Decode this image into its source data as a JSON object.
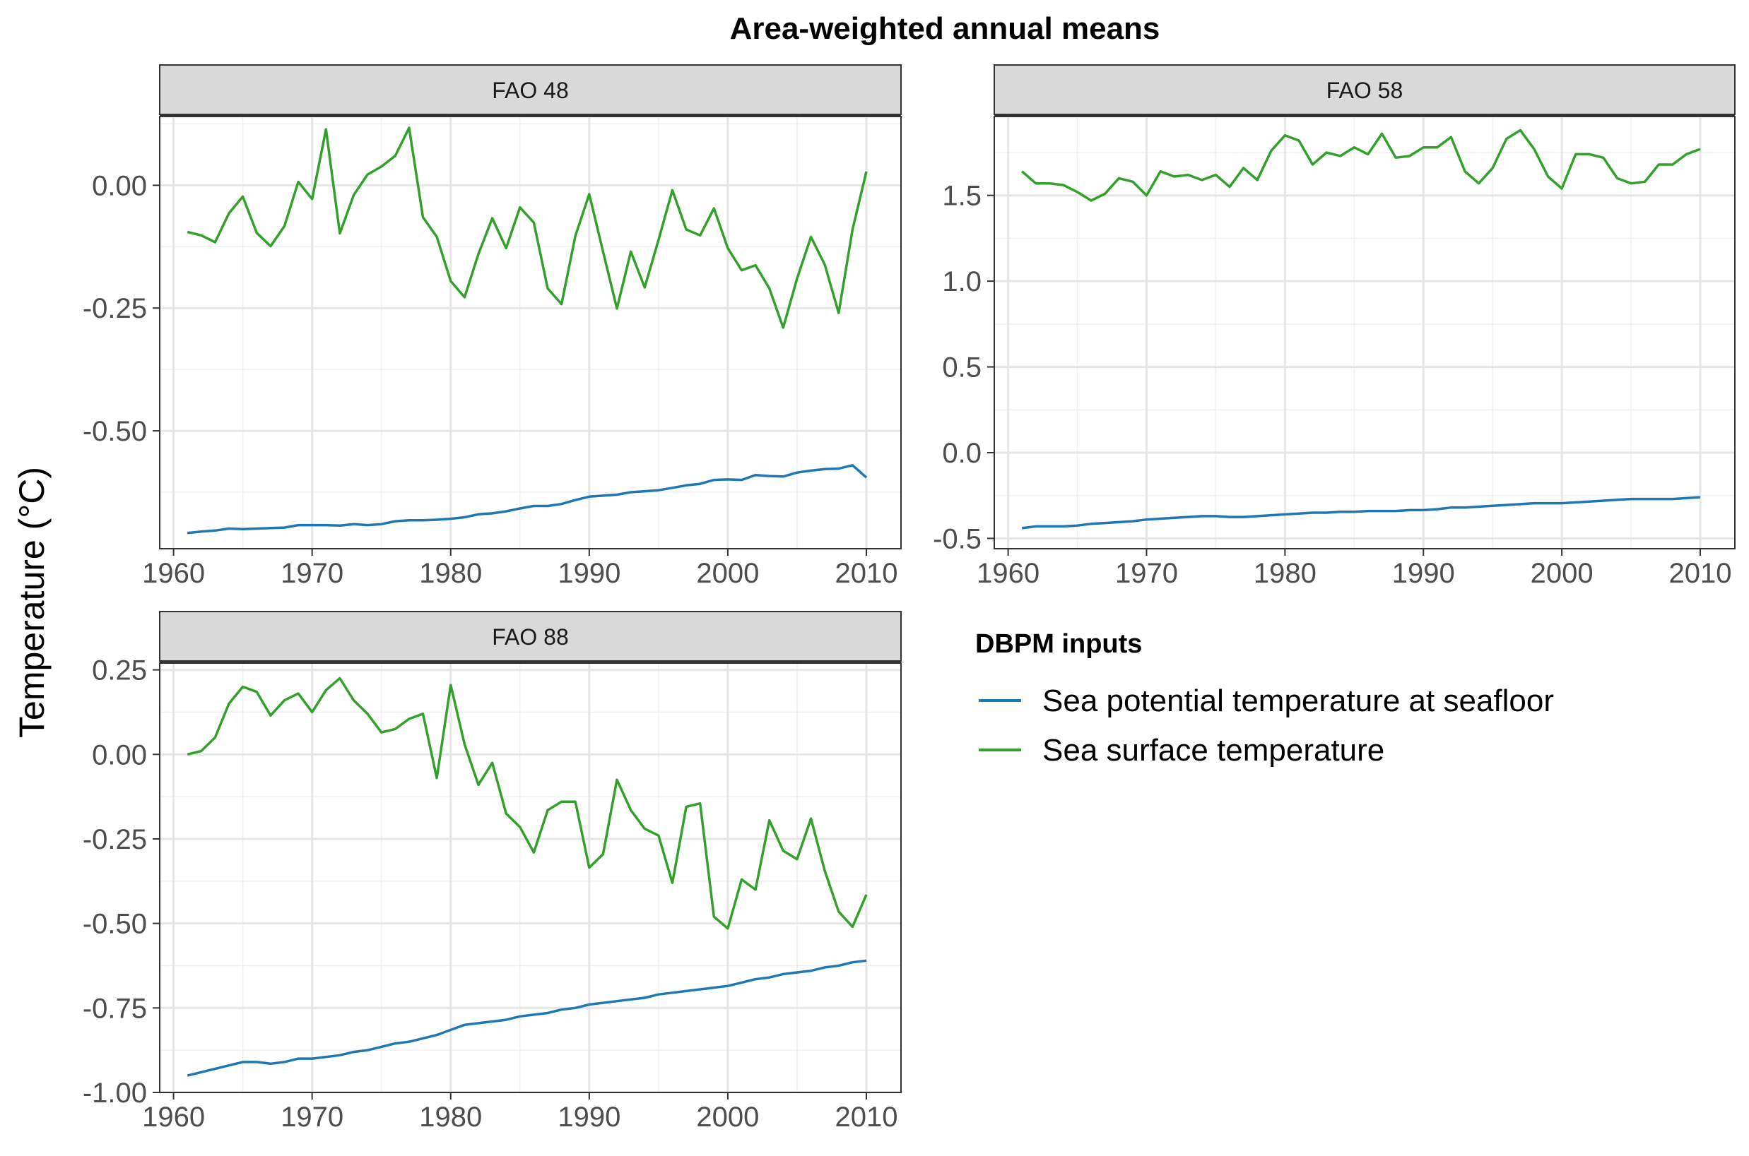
{
  "chart_data": {
    "type": "line",
    "title": "Area-weighted annual means",
    "ylabel": "Temperature (°C)",
    "xlabel": "",
    "grid": true,
    "legend": {
      "title": "DBPM inputs",
      "position": "right",
      "entries": [
        {
          "name": "Sea potential temperature at seafloor",
          "color": "#1f78b4"
        },
        {
          "name": "Sea surface temperature",
          "color": "#33a02c"
        }
      ]
    },
    "years": [
      1961,
      1962,
      1963,
      1964,
      1965,
      1966,
      1967,
      1968,
      1969,
      1970,
      1971,
      1972,
      1973,
      1974,
      1975,
      1976,
      1977,
      1978,
      1979,
      1980,
      1981,
      1982,
      1983,
      1984,
      1985,
      1986,
      1987,
      1988,
      1989,
      1990,
      1991,
      1992,
      1993,
      1994,
      1995,
      1996,
      1997,
      1998,
      1999,
      2000,
      2001,
      2002,
      2003,
      2004,
      2005,
      2006,
      2007,
      2008,
      2009,
      2010
    ],
    "panels": [
      {
        "strip": "FAO 48",
        "xlim": [
          1959,
          2012.5
        ],
        "ylim": [
          -0.74,
          0.14
        ],
        "x_ticks": [
          "1960",
          "1970",
          "1980",
          "1990",
          "2000",
          "2010"
        ],
        "y_ticks": [
          "0.00",
          "-0.25",
          "-0.50"
        ],
        "series": [
          {
            "name": "Sea potential temperature at seafloor",
            "values": [
              -0.708,
              -0.705,
              -0.703,
              -0.699,
              -0.7,
              -0.699,
              -0.698,
              -0.697,
              -0.692,
              -0.692,
              -0.692,
              -0.693,
              -0.69,
              -0.692,
              -0.69,
              -0.684,
              -0.682,
              -0.682,
              -0.681,
              -0.679,
              -0.676,
              -0.67,
              -0.668,
              -0.664,
              -0.658,
              -0.653,
              -0.653,
              -0.649,
              -0.641,
              -0.634,
              -0.632,
              -0.63,
              -0.625,
              -0.623,
              -0.621,
              -0.616,
              -0.611,
              -0.608,
              -0.6,
              -0.599,
              -0.6,
              -0.59,
              -0.592,
              -0.593,
              -0.585,
              -0.581,
              -0.578,
              -0.577,
              -0.57,
              -0.595
            ]
          },
          {
            "name": "Sea surface temperature",
            "values": [
              -0.095,
              -0.102,
              -0.116,
              -0.057,
              -0.023,
              -0.097,
              -0.124,
              -0.083,
              0.007,
              -0.028,
              0.114,
              -0.098,
              -0.02,
              0.022,
              0.038,
              0.06,
              0.117,
              -0.065,
              -0.105,
              -0.195,
              -0.228,
              -0.14,
              -0.067,
              -0.128,
              -0.045,
              -0.076,
              -0.21,
              -0.242,
              -0.103,
              -0.018,
              -0.135,
              -0.251,
              -0.135,
              -0.208,
              -0.111,
              -0.01,
              -0.09,
              -0.102,
              -0.047,
              -0.128,
              -0.173,
              -0.163,
              -0.21,
              -0.29,
              -0.19,
              -0.105,
              -0.162,
              -0.26,
              -0.09,
              0.028
            ]
          }
        ]
      },
      {
        "strip": "FAO 58",
        "xlim": [
          1959,
          2012.5
        ],
        "ylim": [
          -0.56,
          1.96
        ],
        "x_ticks": [
          "1960",
          "1970",
          "1980",
          "1990",
          "2000",
          "2010"
        ],
        "y_ticks": [
          "1.5",
          "1.0",
          "0.5",
          "0.0",
          "-0.5"
        ],
        "series": [
          {
            "name": "Sea potential temperature at seafloor",
            "values": [
              -0.44,
              -0.43,
              -0.43,
              -0.43,
              -0.425,
              -0.415,
              -0.41,
              -0.405,
              -0.4,
              -0.39,
              -0.385,
              -0.38,
              -0.375,
              -0.37,
              -0.37,
              -0.375,
              -0.375,
              -0.37,
              -0.365,
              -0.36,
              -0.355,
              -0.35,
              -0.35,
              -0.345,
              -0.345,
              -0.34,
              -0.34,
              -0.34,
              -0.335,
              -0.335,
              -0.33,
              -0.32,
              -0.32,
              -0.315,
              -0.31,
              -0.305,
              -0.3,
              -0.295,
              -0.295,
              -0.295,
              -0.29,
              -0.285,
              -0.28,
              -0.275,
              -0.27,
              -0.27,
              -0.27,
              -0.27,
              -0.265,
              -0.26
            ]
          },
          {
            "name": "Sea surface temperature",
            "values": [
              1.64,
              1.57,
              1.57,
              1.56,
              1.52,
              1.47,
              1.51,
              1.6,
              1.58,
              1.5,
              1.64,
              1.61,
              1.62,
              1.59,
              1.62,
              1.55,
              1.66,
              1.59,
              1.76,
              1.85,
              1.82,
              1.68,
              1.75,
              1.73,
              1.78,
              1.74,
              1.86,
              1.72,
              1.73,
              1.78,
              1.78,
              1.84,
              1.64,
              1.57,
              1.66,
              1.83,
              1.88,
              1.77,
              1.61,
              1.54,
              1.74,
              1.74,
              1.72,
              1.6,
              1.57,
              1.58,
              1.68,
              1.68,
              1.74,
              1.77
            ]
          }
        ]
      },
      {
        "strip": "FAO 88",
        "xlim": [
          1959,
          2012.5
        ],
        "ylim": [
          -1.0,
          0.27
        ],
        "x_ticks": [
          "1960",
          "1970",
          "1980",
          "1990",
          "2000",
          "2010"
        ],
        "y_ticks": [
          "0.25",
          "0.00",
          "-0.25",
          "-0.50",
          "-0.75",
          "-1.00"
        ],
        "series": [
          {
            "name": "Sea potential temperature at seafloor",
            "values": [
              -0.95,
              -0.94,
              -0.93,
              -0.92,
              -0.91,
              -0.91,
              -0.915,
              -0.91,
              -0.9,
              -0.9,
              -0.895,
              -0.89,
              -0.88,
              -0.875,
              -0.865,
              -0.855,
              -0.85,
              -0.84,
              -0.83,
              -0.815,
              -0.8,
              -0.795,
              -0.79,
              -0.785,
              -0.775,
              -0.77,
              -0.765,
              -0.755,
              -0.75,
              -0.74,
              -0.735,
              -0.73,
              -0.725,
              -0.72,
              -0.71,
              -0.705,
              -0.7,
              -0.695,
              -0.69,
              -0.685,
              -0.675,
              -0.665,
              -0.66,
              -0.65,
              -0.645,
              -0.64,
              -0.63,
              -0.625,
              -0.615,
              -0.61
            ]
          },
          {
            "name": "Sea surface temperature",
            "values": [
              0.0,
              0.01,
              0.05,
              0.15,
              0.2,
              0.185,
              0.115,
              0.16,
              0.18,
              0.125,
              0.19,
              0.225,
              0.16,
              0.12,
              0.065,
              0.075,
              0.105,
              0.12,
              -0.07,
              0.205,
              0.03,
              -0.09,
              -0.025,
              -0.175,
              -0.215,
              -0.29,
              -0.165,
              -0.14,
              -0.14,
              -0.335,
              -0.295,
              -0.075,
              -0.165,
              -0.22,
              -0.24,
              -0.38,
              -0.155,
              -0.145,
              -0.48,
              -0.515,
              -0.37,
              -0.4,
              -0.195,
              -0.285,
              -0.31,
              -0.19,
              -0.345,
              -0.465,
              -0.51,
              -0.415
            ]
          }
        ]
      }
    ]
  }
}
